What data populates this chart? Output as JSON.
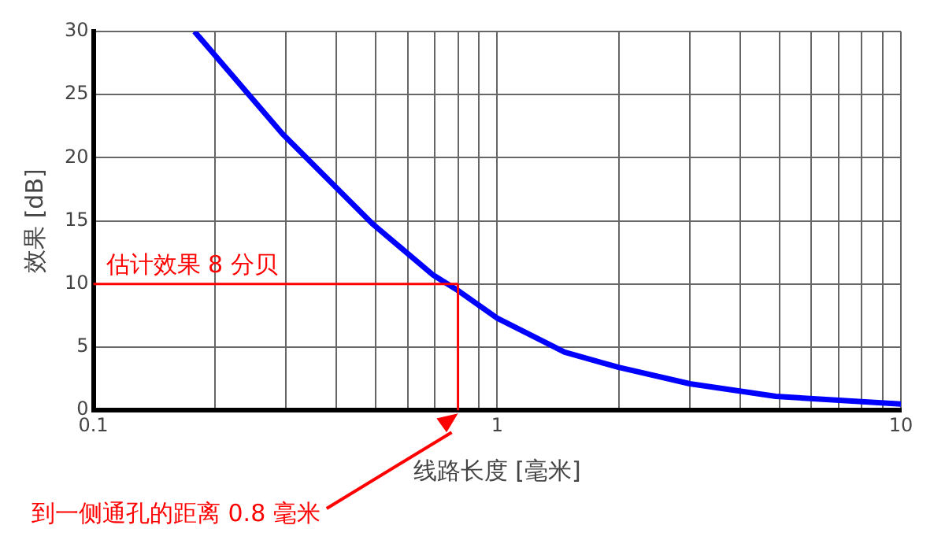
{
  "chart_data": {
    "type": "line",
    "xlabel": "线路长度 [毫米]",
    "ylabel": "效果 [dB]",
    "log": "x",
    "x": [
      0.178,
      0.294,
      0.49,
      0.695,
      0.79,
      1.0,
      1.47,
      2.0,
      3.0,
      4.9,
      10
    ],
    "series": [
      {
        "color": "#0000ff",
        "values": [
          30,
          21.9,
          14.8,
          10.7,
          9.6,
          7.3,
          4.6,
          3.4,
          2.1,
          1.1,
          0.5
        ]
      }
    ],
    "xlim": [
      0.1,
      10
    ],
    "xticks": [
      0.1,
      {
        "value": 0.2,
        "label": null
      },
      {
        "value": 0.3,
        "label": null
      },
      {
        "value": 0.4,
        "label": null
      },
      {
        "value": 0.5,
        "label": null
      },
      {
        "value": 0.6,
        "label": null
      },
      {
        "value": 0.7,
        "label": null
      },
      {
        "value": 0.8,
        "label": null
      },
      {
        "value": 0.9,
        "label": null
      },
      1,
      {
        "value": 2,
        "label": null
      },
      {
        "value": 3,
        "label": null
      },
      {
        "value": 4,
        "label": null
      },
      {
        "value": 5,
        "label": null
      },
      {
        "value": 6,
        "label": null
      },
      {
        "value": 7,
        "label": null
      },
      {
        "value": 8,
        "label": null
      },
      {
        "value": 9,
        "label": null
      },
      10
    ],
    "ylim": [
      0,
      30
    ],
    "yticks": [
      0,
      5,
      10,
      15,
      20,
      25,
      30
    ],
    "grid": true,
    "marker": "none",
    "line_style": "solid",
    "ref_lines": [
      {
        "axis": "y",
        "value": 10,
        "label": "估计效果 8 分贝",
        "color": "#ff0000"
      },
      {
        "axis": "x",
        "value": 0.8,
        "label": "到一侧通孔的距离 0.8 毫米",
        "color": "#ff0000"
      }
    ]
  }
}
